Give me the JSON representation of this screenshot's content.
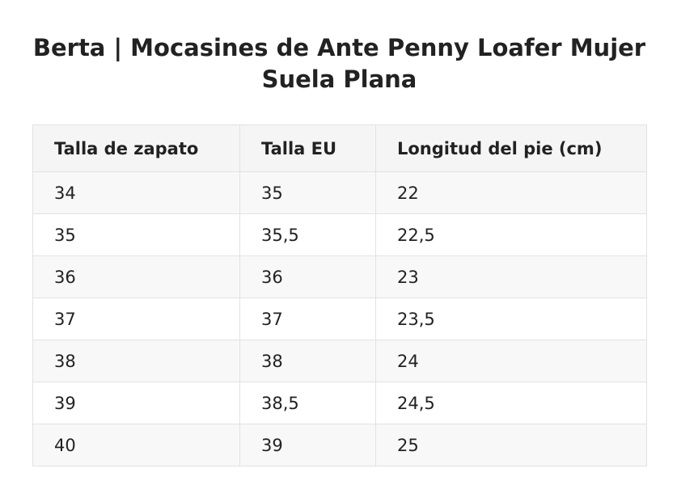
{
  "title": "Berta | Mocasines de Ante Penny Loafer Mujer Suela Plana",
  "table": {
    "headers": [
      "Talla de zapato",
      "Talla EU",
      "Longitud del pie (cm)"
    ],
    "rows": [
      [
        "34",
        "35",
        "22"
      ],
      [
        "35",
        "35,5",
        "22,5"
      ],
      [
        "36",
        "36",
        "23"
      ],
      [
        "37",
        "37",
        "23,5"
      ],
      [
        "38",
        "38",
        "24"
      ],
      [
        "39",
        "38,5",
        "24,5"
      ],
      [
        "40",
        "39",
        "25"
      ]
    ]
  },
  "colors": {
    "text": "#222222",
    "header_bg": "#f5f5f5",
    "stripe_bg": "#f8f8f8",
    "border": "#e2e2e2"
  }
}
